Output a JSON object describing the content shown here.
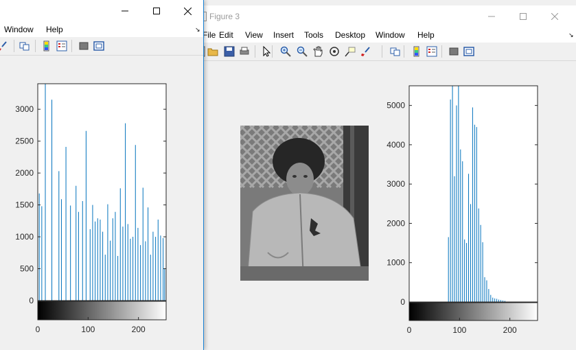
{
  "back_window": {
    "title": "Figure 3",
    "menu": [
      "File",
      "Edit",
      "View",
      "Insert",
      "Tools",
      "Desktop",
      "Window",
      "Help"
    ],
    "toolbar_icons": [
      "new-figure-icon",
      "open-file-icon",
      "save-icon",
      "print-icon",
      "pointer-icon",
      "zoom-in-icon",
      "zoom-out-icon",
      "pan-icon",
      "rotate-3d-icon",
      "data-cursor-icon",
      "brush-icon",
      "link-plot-icon",
      "insert-colorbar-icon",
      "insert-legend-icon",
      "hide-plot-tools-icon",
      "show-plot-tools-icon"
    ]
  },
  "front_window": {
    "menu": [
      "Window",
      "Help"
    ],
    "toolbar_icons": [
      "brush-icon",
      "link-plot-icon",
      "insert-colorbar-icon",
      "insert-legend-icon",
      "hide-plot-tools-icon",
      "show-plot-tools-icon"
    ]
  },
  "colors": {
    "bar": "#0072bd",
    "axes": "#262626",
    "bg": "#f0f0f0",
    "plot_bg": "#ffffff"
  },
  "chart_data": [
    {
      "type": "bar",
      "name": "histogram-front",
      "xlim": [
        0,
        255
      ],
      "ylim": [
        0,
        3400
      ],
      "yticks": [
        0,
        500,
        1000,
        1500,
        2000,
        2500,
        3000
      ],
      "xticks": [
        0,
        100,
        200
      ],
      "colorbar": "grayscale",
      "x": [
        3,
        8,
        15,
        28,
        42,
        47,
        56,
        65,
        76,
        81,
        89,
        96,
        104,
        109,
        114,
        119,
        124,
        129,
        134,
        139,
        144,
        149,
        154,
        159,
        164,
        169,
        174,
        179,
        184,
        189,
        194,
        199,
        204,
        209,
        214,
        219,
        224,
        229,
        234,
        239,
        244,
        249,
        252
      ],
      "values": [
        1680,
        1480,
        3450,
        3150,
        2030,
        1590,
        2410,
        1490,
        1800,
        1390,
        1560,
        2660,
        1120,
        1500,
        1240,
        1290,
        1270,
        1080,
        720,
        1510,
        940,
        1290,
        1390,
        700,
        1760,
        1160,
        2780,
        1200,
        970,
        1000,
        2440,
        1140,
        870,
        1770,
        930,
        1460,
        720,
        1080,
        1000,
        1270,
        1020,
        980,
        500
      ]
    },
    {
      "type": "bar",
      "name": "histogram-back",
      "xlim": [
        0,
        255
      ],
      "ylim": [
        0,
        5500
      ],
      "yticks": [
        0,
        1000,
        2000,
        3000,
        4000,
        5000
      ],
      "xticks": [
        0,
        100,
        200
      ],
      "colorbar": "grayscale",
      "x": [
        78,
        82,
        86,
        90,
        94,
        98,
        102,
        106,
        110,
        114,
        118,
        122,
        126,
        130,
        134,
        138,
        142,
        146,
        150,
        154,
        158,
        162,
        166,
        170,
        174,
        178,
        182,
        186,
        190
      ],
      "values": [
        1650,
        5150,
        5500,
        3200,
        5000,
        5500,
        3880,
        3580,
        1590,
        1500,
        3260,
        2490,
        4950,
        4510,
        4450,
        2380,
        1960,
        1520,
        630,
        550,
        330,
        180,
        110,
        90,
        80,
        60,
        50,
        40,
        30
      ]
    }
  ]
}
